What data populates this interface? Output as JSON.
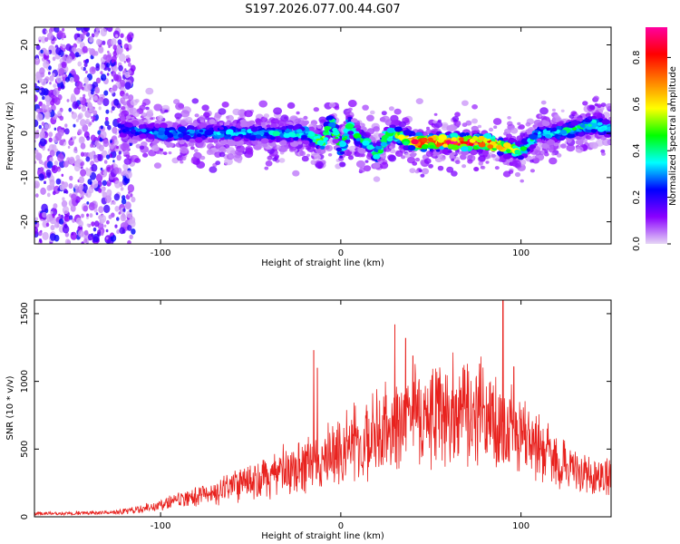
{
  "title": "S197.2026.077.00.44.G07",
  "chart_data": [
    {
      "type": "heatmap",
      "xlabel": "Height of straight line (km)",
      "ylabel": "Frequency (Hz)",
      "xlim": [
        -170,
        150
      ],
      "ylim": [
        -25,
        24
      ],
      "x_ticks": [
        -100,
        0,
        100
      ],
      "y_ticks": [
        -20,
        -10,
        0,
        10,
        20
      ],
      "colorbar": {
        "label": "Normalized spectral amplitude",
        "range": [
          0,
          0.93
        ],
        "ticks": [
          0.0,
          0.2,
          0.4,
          0.6,
          0.8
        ],
        "colors": [
          "#e6d6f5",
          "#8a00ff",
          "#0000ff",
          "#00ffff",
          "#00ff00",
          "#ffff00",
          "#ff8000",
          "#ff0000",
          "#ff00a0"
        ]
      },
      "ridge": {
        "x": [
          -120,
          -100,
          -80,
          -60,
          -40,
          -20,
          -10,
          -5,
          0,
          5,
          10,
          15,
          20,
          25,
          30,
          40,
          60,
          80,
          100,
          110,
          120,
          140,
          150
        ],
        "freq": [
          1,
          0,
          0,
          0,
          0,
          0,
          -2,
          3,
          -4,
          2,
          -1,
          -2,
          -5,
          -1,
          0,
          -2,
          -2,
          -2,
          -4,
          0,
          0,
          2,
          1
        ],
        "amplitude": [
          0.25,
          0.35,
          0.3,
          0.35,
          0.35,
          0.4,
          0.5,
          0.5,
          0.45,
          0.45,
          0.45,
          0.4,
          0.45,
          0.5,
          0.55,
          0.85,
          0.9,
          0.85,
          0.5,
          0.35,
          0.4,
          0.45,
          0.35
        ]
      }
    },
    {
      "type": "line",
      "xlabel": "Height of straight line (km)",
      "ylabel": "SNR (10 * v/v)",
      "xlim": [
        -170,
        150
      ],
      "ylim": [
        0,
        1600
      ],
      "x_ticks": [
        -100,
        0,
        100
      ],
      "y_ticks": [
        0,
        500,
        1000,
        1500
      ],
      "color": "#e8221e",
      "series": [
        {
          "name": "SNR",
          "x": [
            -170,
            -150,
            -130,
            -120,
            -110,
            -100,
            -90,
            -80,
            -70,
            -60,
            -50,
            -40,
            -30,
            -20,
            -10,
            0,
            10,
            20,
            30,
            40,
            50,
            60,
            70,
            80,
            90,
            100,
            110,
            120,
            130,
            140,
            150
          ],
          "y": [
            25,
            25,
            30,
            40,
            60,
            90,
            120,
            150,
            180,
            230,
            260,
            300,
            330,
            380,
            420,
            500,
            580,
            620,
            650,
            720,
            740,
            760,
            760,
            740,
            700,
            620,
            500,
            420,
            330,
            300,
            300
          ]
        }
      ],
      "spikes": [
        {
          "x": -15,
          "y": 1230
        },
        {
          "x": -13,
          "y": 1100
        },
        {
          "x": 30,
          "y": 1420
        },
        {
          "x": 36,
          "y": 1320
        },
        {
          "x": 40,
          "y": 1190
        },
        {
          "x": 90,
          "y": 1600
        },
        {
          "x": 77,
          "y": 1130
        },
        {
          "x": 96,
          "y": 1110
        }
      ]
    }
  ]
}
